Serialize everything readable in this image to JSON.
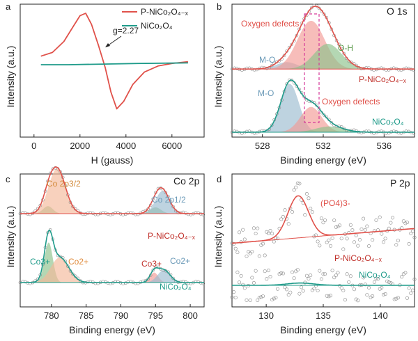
{
  "colors": {
    "red": "#e0514a",
    "teal": "#1f9b8a",
    "peach": "#f4b99a",
    "blue_fill": "#9bbbd0",
    "green_fill": "#8cc28a",
    "pink_fill": "#f29a95",
    "magenta": "#d63a9a"
  },
  "chart_data": [
    {
      "id": "a",
      "type": "line",
      "panel_letter": "a",
      "xlabel": "H (gauss)",
      "ylabel": "Intensity (a.u.)",
      "xlim": [
        -600,
        7400
      ],
      "xticks": [
        0,
        2000,
        4000,
        6000
      ],
      "annotation": "g=2.27",
      "series": [
        {
          "name": "P-NiCo₂O₄₋ₓ",
          "color": "#e0514a",
          "x": [
            300,
            800,
            1300,
            1700,
            2000,
            2250,
            2500,
            2800,
            3100,
            3350,
            3600,
            3900,
            4300,
            4800,
            5400,
            6000,
            6700
          ],
          "y": [
            0.14,
            0.2,
            0.38,
            0.62,
            0.8,
            0.84,
            0.66,
            0.32,
            -0.05,
            -0.45,
            -0.72,
            -0.6,
            -0.32,
            -0.12,
            -0.02,
            0.02,
            0.05
          ]
        },
        {
          "name": "NiCo₂O₄",
          "color": "#1f9b8a",
          "x": [
            300,
            1500,
            3000,
            4500,
            6700
          ],
          "y": [
            0.0,
            0.0,
            0.01,
            0.02,
            0.03
          ]
        }
      ]
    },
    {
      "id": "b",
      "type": "line",
      "panel_letter": "b",
      "title": "O 1s",
      "xlabel": "Binding energy (eV)",
      "ylabel": "Intensity (a.u.)",
      "xlim": [
        526,
        538
      ],
      "xticks": [
        528,
        532,
        536
      ],
      "labels": {
        "oxygen_defects_top": "Oxygen defects",
        "oh": "O-H",
        "mo_top": "M-O",
        "sample_top": "P-NiCo₂O₄₋ₓ",
        "mo_bottom": "M-O",
        "oxygen_defects_bottom": "Oxygen defects",
        "sample_bottom": "NiCo₂O₄"
      },
      "series": [
        {
          "name": "P-NiCo₂O₄₋ₓ",
          "components": [
            {
              "label": "M-O",
              "center": 529.6,
              "height": 0.06,
              "width": 0.7,
              "color": "#9bbbd0"
            },
            {
              "label": "Oxygen defects",
              "center": 531.2,
              "height": 0.42,
              "width": 0.9,
              "color": "#f29a95"
            },
            {
              "label": "O-H",
              "center": 532.3,
              "height": 0.22,
              "width": 0.9,
              "color": "#8cc28a"
            }
          ],
          "offset": 0.55
        },
        {
          "name": "NiCo₂O₄",
          "components": [
            {
              "label": "M-O",
              "center": 529.8,
              "height": 0.42,
              "width": 0.6,
              "color": "#9bbbd0"
            },
            {
              "label": "Oxygen defects",
              "center": 531.2,
              "height": 0.22,
              "width": 0.7,
              "color": "#f29a95"
            },
            {
              "label": "O-H",
              "center": 532.4,
              "height": 0.05,
              "width": 0.9,
              "color": "#8cc28a"
            }
          ],
          "offset": 0.0
        }
      ]
    },
    {
      "id": "c",
      "type": "line",
      "panel_letter": "c",
      "title": "Co 2p",
      "xlabel": "Binding energy (eV)",
      "ylabel": "Intensity (a.u.)",
      "xlim": [
        775.5,
        802
      ],
      "xticks": [
        780,
        785,
        790,
        795,
        800
      ],
      "labels": {
        "co2p32": "Co 2p3/2",
        "co2p12": "Co 2p1/2",
        "sample_top": "P-NiCo₂O₄₋ₓ",
        "co3_left": "Co3+",
        "co2_left": "Co2+",
        "co3_right": "Co3+",
        "co2_right": "Co2+",
        "sample_bottom": "NiCo₂O₄"
      },
      "series": [
        {
          "name": "P-NiCo₂O₄₋ₓ",
          "offset": 0.55,
          "components": [
            {
              "label": "Co3+",
              "center": 779.5,
              "height": 0.06,
              "width": 0.7,
              "color": "#8cc28a"
            },
            {
              "label": "Co2+",
              "center": 780.8,
              "height": 0.36,
              "width": 1.2,
              "color": "#f4b99a"
            },
            {
              "label": "Co3+",
              "center": 795.0,
              "height": 0.05,
              "width": 0.8,
              "color": "#8cc28a"
            },
            {
              "label": "Co2+",
              "center": 796.0,
              "height": 0.18,
              "width": 1.0,
              "color": "#9bbbd0"
            }
          ]
        },
        {
          "name": "NiCo₂O₄",
          "offset": 0.0,
          "components": [
            {
              "label": "Co3+",
              "center": 779.6,
              "height": 0.32,
              "width": 0.6,
              "color": "#8cc28a"
            },
            {
              "label": "Co2+",
              "center": 781.2,
              "height": 0.2,
              "width": 1.3,
              "color": "#f4b99a"
            },
            {
              "label": "Co3+",
              "center": 794.8,
              "height": 0.08,
              "width": 0.6,
              "color": "#f29a95"
            },
            {
              "label": "Co2+",
              "center": 796.2,
              "height": 0.1,
              "width": 0.9,
              "color": "#9bbbd0"
            }
          ]
        }
      ]
    },
    {
      "id": "d",
      "type": "line",
      "panel_letter": "d",
      "title": "P 2p",
      "xlabel": "Binding energy (eV)",
      "ylabel": "Intensity (a.u.)",
      "xlim": [
        127,
        143
      ],
      "xticks": [
        130,
        135,
        140
      ],
      "labels": {
        "po4": "(PO4)3-",
        "sample_top": "P-NiCo₂O₄₋ₓ",
        "sample_bottom": "NiCo₂O₄"
      },
      "series": [
        {
          "name": "P-NiCo₂O₄₋ₓ",
          "offset": 0.55,
          "peak_center": 132.8,
          "peak_height": 0.55,
          "peak_width": 0.9,
          "baseline_slope": 0.012
        },
        {
          "name": "NiCo₂O₄",
          "offset": 0.0,
          "peak_center": 133.0,
          "peak_height": 0.03,
          "peak_width": 1.2,
          "baseline_slope": 0.0
        }
      ]
    }
  ]
}
